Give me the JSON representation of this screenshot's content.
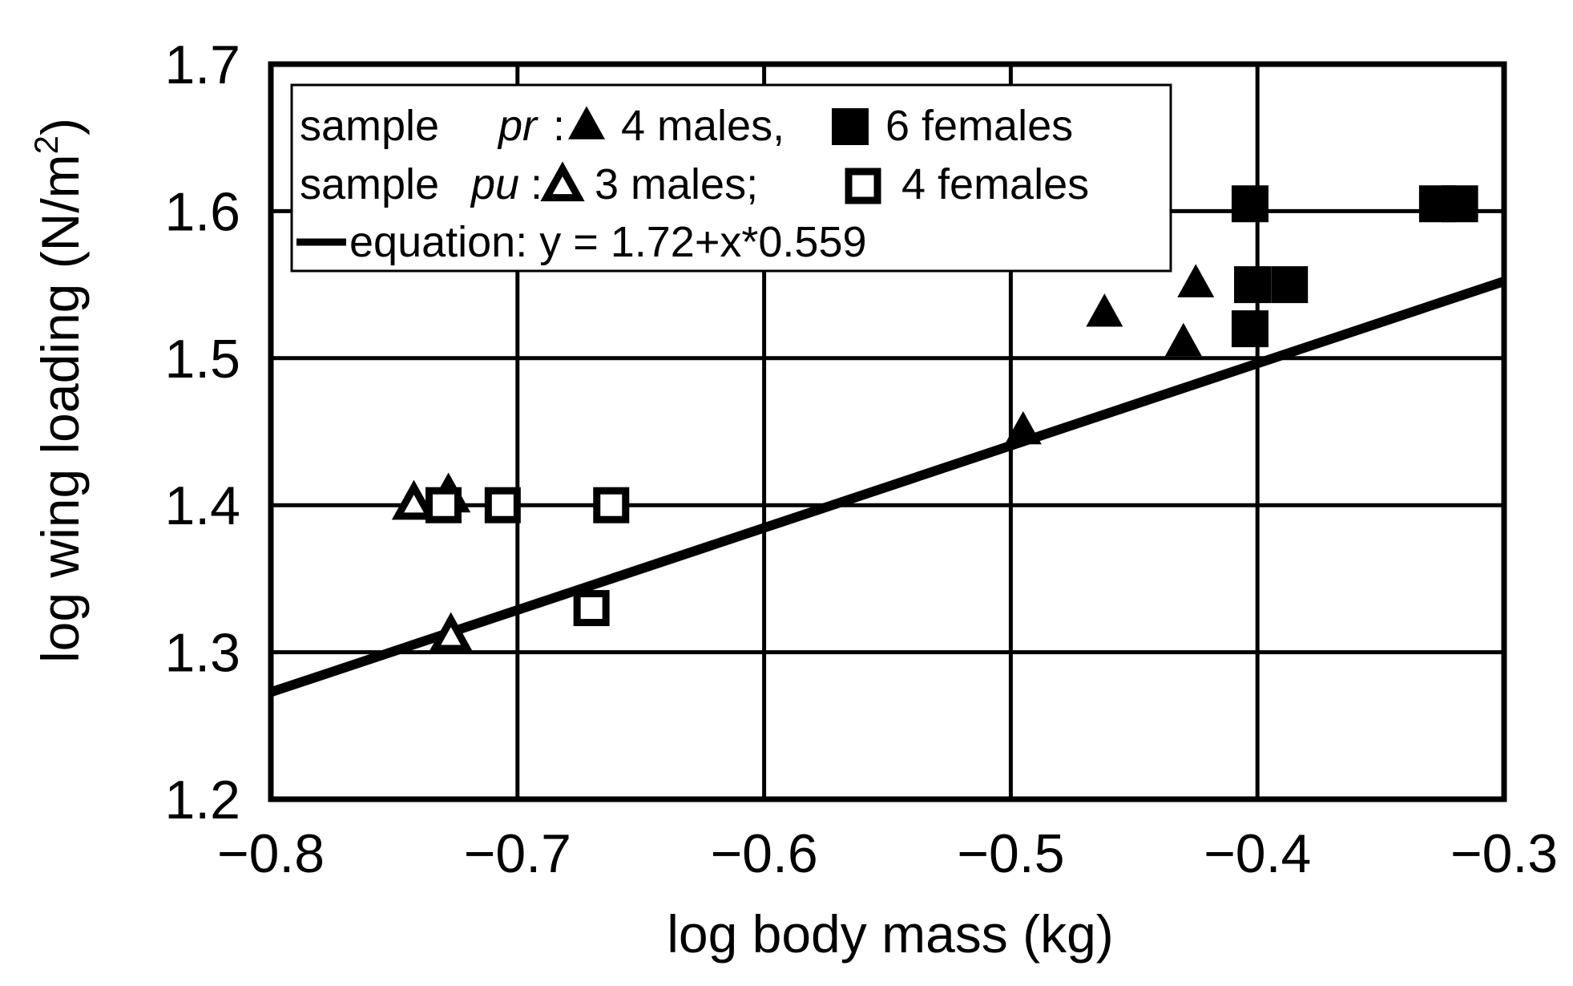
{
  "chart_data": {
    "type": "scatter",
    "title": "",
    "xlabel": "log body mass (kg)",
    "ylabel": "log wing loading (N/m²)",
    "ylabel_prefix": "log wing loading (N/m",
    "ylabel_sup": "2",
    "ylabel_suffix": ")",
    "xlim": [
      -0.8,
      -0.3
    ],
    "ylim": [
      1.2,
      1.7
    ],
    "x_ticks": [
      -0.8,
      -0.7,
      -0.6,
      -0.5,
      -0.4,
      -0.3
    ],
    "x_tick_labels": [
      "−0.8",
      "−0.7",
      "−0.6",
      "−0.5",
      "−0.4",
      "−0.3"
    ],
    "y_ticks": [
      1.2,
      1.3,
      1.4,
      1.5,
      1.6,
      1.7
    ],
    "y_tick_labels": [
      "1.2",
      "1.3",
      "1.4",
      "1.5",
      "1.6",
      "1.7"
    ],
    "grid": true,
    "legend_position": "top-left",
    "legend": {
      "row1": {
        "prefix": "sample ",
        "sample": "pr",
        "colon": ":",
        "a": "4 males,",
        "b": "6 females"
      },
      "row2": {
        "prefix": "sample ",
        "sample": "pu",
        "colon": ":",
        "a": "3 males;",
        "b": "4 females"
      },
      "row3": {
        "text": "equation: y = 1.72+x*0.559"
      }
    },
    "series": [
      {
        "name": "pr males",
        "marker": "filled-triangle",
        "points": [
          [
            -0.495,
            1.45
          ],
          [
            -0.462,
            1.53
          ],
          [
            -0.43,
            1.51
          ],
          [
            -0.425,
            1.55
          ]
        ]
      },
      {
        "name": "pr females",
        "marker": "filled-square",
        "points": [
          [
            -0.403,
            1.605
          ],
          [
            -0.402,
            1.55
          ],
          [
            -0.403,
            1.52
          ],
          [
            -0.387,
            1.55
          ],
          [
            -0.327,
            1.605
          ],
          [
            -0.318,
            1.605
          ]
        ]
      },
      {
        "name": "pu males",
        "marker": "open-triangle",
        "points": [
          [
            -0.742,
            1.4
          ],
          [
            -0.728,
            1.405
          ],
          [
            -0.727,
            1.31
          ]
        ]
      },
      {
        "name": "pu females",
        "marker": "open-square",
        "points": [
          [
            -0.73,
            1.4
          ],
          [
            -0.706,
            1.4
          ],
          [
            -0.662,
            1.4
          ],
          [
            -0.67,
            1.33
          ]
        ]
      }
    ],
    "fit_line": {
      "intercept": 1.72,
      "slope": 0.559,
      "x_range": [
        -0.8,
        -0.3
      ]
    },
    "colors": {
      "ink": "#000000",
      "background": "#ffffff"
    }
  }
}
